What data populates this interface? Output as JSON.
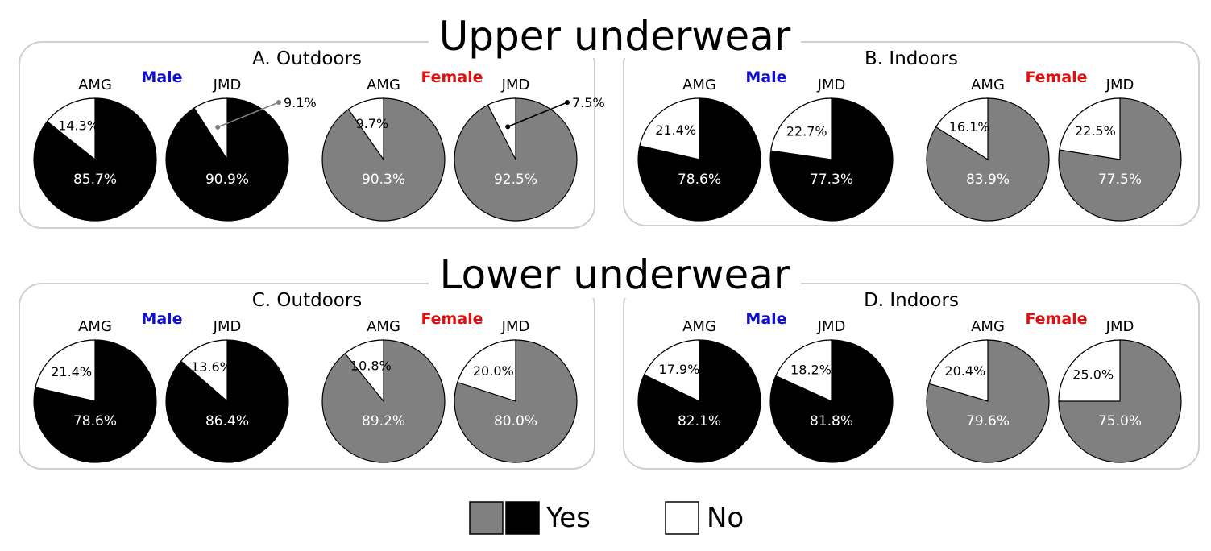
{
  "section_titles": [
    "Upper underwear",
    "Lower underwear"
  ],
  "colors": {
    "male_label": "#1010cc",
    "female_label": "#e01010",
    "male_yes": "#000000",
    "female_yes": "#808080",
    "no": "#ffffff"
  },
  "legend": {
    "yes": "Yes",
    "no": "No"
  },
  "chart_data": [
    {
      "type": "pie",
      "title": "A. Outdoors",
      "section": "Upper underwear",
      "groups": [
        {
          "label": "Male",
          "pies": [
            {
              "label": "AMG",
              "series": [
                {
                  "name": "Yes",
                  "value": 85.7,
                  "label": "85.7%"
                },
                {
                  "name": "No",
                  "value": 14.3,
                  "label": "14.3%"
                }
              ]
            },
            {
              "label": "JMD",
              "series": [
                {
                  "name": "Yes",
                  "value": 90.9,
                  "label": "90.9%"
                },
                {
                  "name": "No",
                  "value": 9.1,
                  "label": "9.1%"
                }
              ]
            }
          ]
        },
        {
          "label": "Female",
          "pies": [
            {
              "label": "AMG",
              "series": [
                {
                  "name": "Yes",
                  "value": 90.3,
                  "label": "90.3%"
                },
                {
                  "name": "No",
                  "value": 9.7,
                  "label": "9.7%"
                }
              ]
            },
            {
              "label": "JMD",
              "series": [
                {
                  "name": "Yes",
                  "value": 92.5,
                  "label": "92.5%"
                },
                {
                  "name": "No",
                  "value": 7.5,
                  "label": "7.5%"
                }
              ]
            }
          ]
        }
      ]
    },
    {
      "type": "pie",
      "title": "B. Indoors",
      "section": "Upper underwear",
      "groups": [
        {
          "label": "Male",
          "pies": [
            {
              "label": "AMG",
              "series": [
                {
                  "name": "Yes",
                  "value": 78.6,
                  "label": "78.6%"
                },
                {
                  "name": "No",
                  "value": 21.4,
                  "label": "21.4%"
                }
              ]
            },
            {
              "label": "JMD",
              "series": [
                {
                  "name": "Yes",
                  "value": 77.3,
                  "label": "77.3%"
                },
                {
                  "name": "No",
                  "value": 22.7,
                  "label": "22.7%"
                }
              ]
            }
          ]
        },
        {
          "label": "Female",
          "pies": [
            {
              "label": "AMG",
              "series": [
                {
                  "name": "Yes",
                  "value": 83.9,
                  "label": "83.9%"
                },
                {
                  "name": "No",
                  "value": 16.1,
                  "label": "16.1%"
                }
              ]
            },
            {
              "label": "JMD",
              "series": [
                {
                  "name": "Yes",
                  "value": 77.5,
                  "label": "77.5%"
                },
                {
                  "name": "No",
                  "value": 22.5,
                  "label": "22.5%"
                }
              ]
            }
          ]
        }
      ]
    },
    {
      "type": "pie",
      "title": "C. Outdoors",
      "section": "Lower underwear",
      "groups": [
        {
          "label": "Male",
          "pies": [
            {
              "label": "AMG",
              "series": [
                {
                  "name": "Yes",
                  "value": 78.6,
                  "label": "78.6%"
                },
                {
                  "name": "No",
                  "value": 21.4,
                  "label": "21.4%"
                }
              ]
            },
            {
              "label": "JMD",
              "series": [
                {
                  "name": "Yes",
                  "value": 86.4,
                  "label": "86.4%"
                },
                {
                  "name": "No",
                  "value": 13.6,
                  "label": "13.6%"
                }
              ]
            }
          ]
        },
        {
          "label": "Female",
          "pies": [
            {
              "label": "AMG",
              "series": [
                {
                  "name": "Yes",
                  "value": 89.2,
                  "label": "89.2%"
                },
                {
                  "name": "No",
                  "value": 10.8,
                  "label": "10.8%"
                }
              ]
            },
            {
              "label": "JMD",
              "series": [
                {
                  "name": "Yes",
                  "value": 80.0,
                  "label": "80.0%"
                },
                {
                  "name": "No",
                  "value": 20.0,
                  "label": "20.0%"
                }
              ]
            }
          ]
        }
      ]
    },
    {
      "type": "pie",
      "title": "D. Indoors",
      "section": "Lower underwear",
      "groups": [
        {
          "label": "Male",
          "pies": [
            {
              "label": "AMG",
              "series": [
                {
                  "name": "Yes",
                  "value": 82.1,
                  "label": "82.1%"
                },
                {
                  "name": "No",
                  "value": 17.9,
                  "label": "17.9%"
                }
              ]
            },
            {
              "label": "JMD",
              "series": [
                {
                  "name": "Yes",
                  "value": 81.8,
                  "label": "81.8%"
                },
                {
                  "name": "No",
                  "value": 18.2,
                  "label": "18.2%"
                }
              ]
            }
          ]
        },
        {
          "label": "Female",
          "pies": [
            {
              "label": "AMG",
              "series": [
                {
                  "name": "Yes",
                  "value": 79.6,
                  "label": "79.6%"
                },
                {
                  "name": "No",
                  "value": 20.4,
                  "label": "20.4%"
                }
              ]
            },
            {
              "label": "JMD",
              "series": [
                {
                  "name": "Yes",
                  "value": 75.0,
                  "label": "75.0%"
                },
                {
                  "name": "No",
                  "value": 25.0,
                  "label": "25.0%"
                }
              ]
            }
          ]
        }
      ]
    }
  ]
}
